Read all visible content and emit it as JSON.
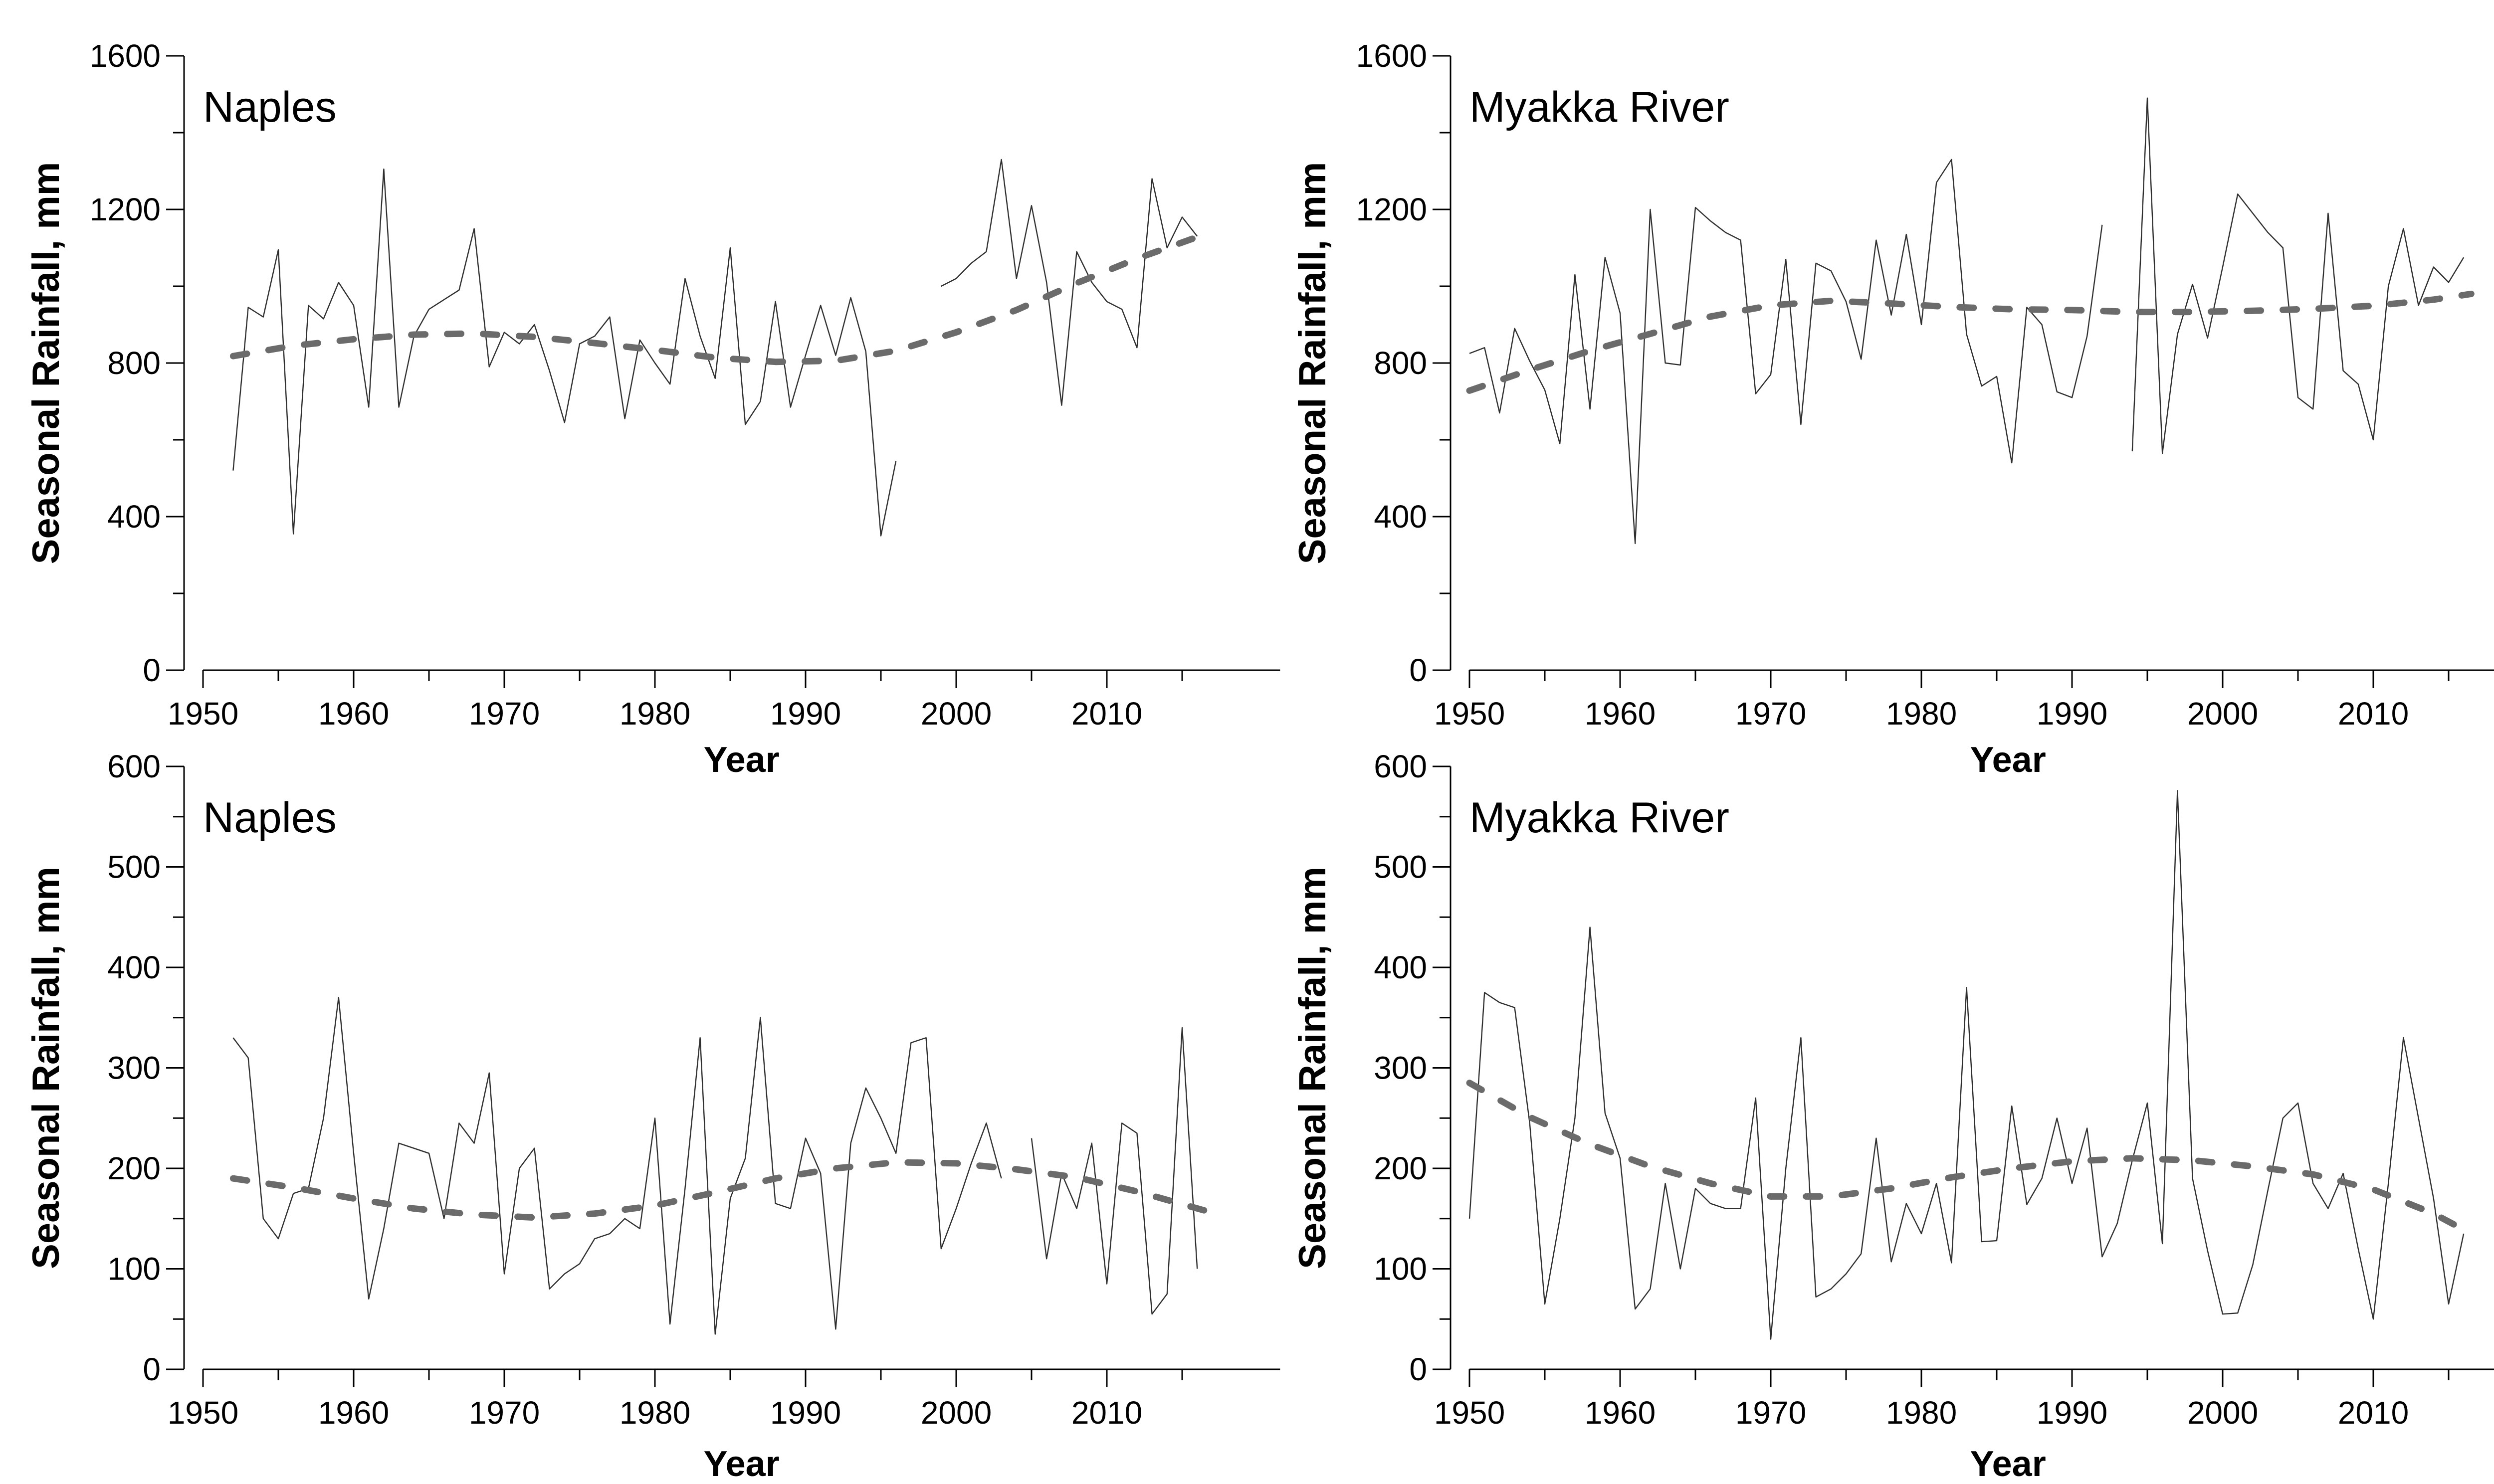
{
  "page": {
    "background": "#ffffff",
    "description": "Four-panel line chart figure of seasonal rainfall for two stations, wet season (top, 0-1600 mm) and dry season (bottom, 0-600 mm)"
  },
  "colors": {
    "axis": "#000000",
    "annual_line": "#2f2f2f",
    "trend_line": "#6b6b6b",
    "text": "#000000"
  },
  "chart_data": [
    {
      "id": "naples-upper",
      "position": "top-left",
      "type": "line",
      "title": "Naples",
      "xlabel": "Year",
      "ylabel": "Seasonal Rainfall, mm",
      "xlim": [
        1950,
        2021.5
      ],
      "ylim": [
        0,
        1600
      ],
      "xticks_major": [
        1950,
        1960,
        1970,
        1980,
        1990,
        2000,
        2010
      ],
      "xticks_minor": [
        1955,
        1965,
        1975,
        1985,
        1995,
        2005,
        2015
      ],
      "yticks_major": [
        0,
        400,
        800,
        1200,
        1600
      ],
      "yticks_minor": [
        200,
        600,
        1000,
        1400
      ],
      "grid": false,
      "legend": null,
      "series": [
        {
          "name": "annual rainfall",
          "style": "thin-solid",
          "start_year": 1952,
          "values": [
            520,
            945,
            920,
            1095,
            355,
            950,
            915,
            1010,
            950,
            685,
            1305,
            685,
            870,
            940,
            965,
            990,
            1150,
            790,
            880,
            850,
            900,
            780,
            645,
            850,
            870,
            920,
            655,
            860,
            800,
            745,
            1020,
            870,
            760,
            1100,
            640,
            700,
            960,
            685,
            820,
            950,
            820,
            970,
            830,
            350,
            545,
            null,
            null,
            1000,
            1020,
            1060,
            1090,
            1330,
            1020,
            1210,
            1010,
            690,
            1090,
            1010,
            960,
            940,
            840,
            1280,
            1100,
            1180,
            1130
          ]
        },
        {
          "name": "smoothed trend",
          "style": "thick-dashed",
          "x": [
            1952,
            1956,
            1960,
            1964,
            1968,
            1972,
            1976,
            1980,
            1984,
            1988,
            1992,
            1996,
            2000,
            2004,
            2008,
            2012,
            2016.5
          ],
          "values": [
            818,
            845,
            862,
            874,
            877,
            868,
            852,
            834,
            814,
            803,
            806,
            832,
            880,
            938,
            1008,
            1072,
            1135
          ]
        }
      ]
    },
    {
      "id": "myakka-upper",
      "position": "top-right",
      "type": "line",
      "title": "Myakka River",
      "xlabel": "Year",
      "ylabel": "Seasonal Rainfall, mm",
      "xlim": [
        1950,
        2021.5
      ],
      "ylim": [
        0,
        1600
      ],
      "xticks_major": [
        1950,
        1960,
        1970,
        1980,
        1990,
        2000,
        2010
      ],
      "xticks_minor": [
        1955,
        1965,
        1975,
        1985,
        1995,
        2005,
        2015
      ],
      "yticks_major": [
        0,
        400,
        800,
        1200,
        1600
      ],
      "yticks_minor": [
        200,
        600,
        1000,
        1400
      ],
      "grid": false,
      "legend": null,
      "series": [
        {
          "name": "annual rainfall",
          "style": "thin-solid",
          "start_year": 1950,
          "values": [
            825,
            840,
            670,
            890,
            805,
            730,
            590,
            1030,
            680,
            1075,
            930,
            330,
            1200,
            800,
            795,
            1205,
            1170,
            1140,
            1120,
            720,
            770,
            1070,
            640,
            1060,
            1040,
            960,
            810,
            1120,
            925,
            1135,
            900,
            1270,
            1330,
            875,
            740,
            765,
            540,
            945,
            900,
            725,
            710,
            870,
            1160,
            null,
            570,
            1490,
            565,
            875,
            1005,
            865,
            1050,
            1240,
            1190,
            1140,
            1100,
            710,
            680,
            1190,
            780,
            745,
            600,
            1000,
            1150,
            950,
            1050,
            1010,
            1075
          ]
        },
        {
          "name": "smoothed trend",
          "style": "thick-dashed",
          "x": [
            1950,
            1954,
            1958,
            1962,
            1966,
            1970,
            1974,
            1978,
            1982,
            1986,
            1990,
            1994,
            1998,
            2002,
            2006,
            2010,
            2014,
            2016.5
          ],
          "values": [
            728,
            782,
            832,
            876,
            921,
            950,
            962,
            955,
            946,
            940,
            938,
            933,
            933,
            936,
            941,
            949,
            965,
            980
          ]
        }
      ]
    },
    {
      "id": "naples-lower",
      "position": "bottom-left",
      "type": "line",
      "title": "Naples",
      "xlabel": "Year",
      "ylabel": "Seasonal Rainfall, mm",
      "xlim": [
        1950,
        2021.5
      ],
      "ylim": [
        0,
        600
      ],
      "xticks_major": [
        1950,
        1960,
        1970,
        1980,
        1990,
        2000,
        2010
      ],
      "xticks_minor": [
        1955,
        1965,
        1975,
        1985,
        1995,
        2005,
        2015
      ],
      "yticks_major": [
        0,
        100,
        200,
        300,
        400,
        500,
        600
      ],
      "yticks_minor": [
        50,
        150,
        250,
        350,
        450,
        550
      ],
      "grid": false,
      "legend": null,
      "series": [
        {
          "name": "annual rainfall",
          "style": "thin-solid",
          "start_year": 1952,
          "values": [
            330,
            310,
            150,
            130,
            175,
            180,
            250,
            370,
            215,
            70,
            140,
            225,
            220,
            215,
            150,
            245,
            225,
            295,
            95,
            200,
            220,
            80,
            95,
            105,
            130,
            135,
            150,
            140,
            250,
            45,
            180,
            330,
            35,
            170,
            210,
            350,
            165,
            160,
            230,
            195,
            40,
            225,
            280,
            250,
            215,
            325,
            330,
            120,
            160,
            205,
            245,
            190,
            null,
            230,
            110,
            195,
            160,
            225,
            85,
            245,
            235,
            55,
            75,
            340,
            100
          ]
        },
        {
          "name": "smoothed trend",
          "style": "thick-dashed",
          "x": [
            1952,
            1956,
            1960,
            1964,
            1968,
            1972,
            1976,
            1980,
            1984,
            1988,
            1992,
            1996,
            2000,
            2004,
            2008,
            2012,
            2016.5
          ],
          "values": [
            190,
            181,
            170,
            160,
            154,
            151,
            155,
            163,
            176,
            190,
            200,
            206,
            205,
            199,
            191,
            177,
            158
          ]
        }
      ]
    },
    {
      "id": "myakka-lower",
      "position": "bottom-right",
      "type": "line",
      "title": "Myakka River",
      "xlabel": "Year",
      "ylabel": "Seasonal Rainfall, mm",
      "xlim": [
        1950,
        2021.5
      ],
      "ylim": [
        0,
        600
      ],
      "xticks_major": [
        1950,
        1960,
        1970,
        1980,
        1990,
        2000,
        2010
      ],
      "xticks_minor": [
        1955,
        1965,
        1975,
        1985,
        1995,
        2005,
        2015
      ],
      "yticks_major": [
        0,
        100,
        200,
        300,
        400,
        500,
        600
      ],
      "yticks_minor": [
        50,
        150,
        250,
        350,
        450,
        550
      ],
      "grid": false,
      "legend": null,
      "series": [
        {
          "name": "annual rainfall",
          "style": "thin-solid",
          "start_year": 1950,
          "values": [
            150,
            375,
            365,
            360,
            245,
            65,
            150,
            250,
            440,
            255,
            210,
            60,
            80,
            185,
            100,
            180,
            165,
            160,
            160,
            270,
            30,
            200,
            330,
            72,
            80,
            95,
            115,
            230,
            107,
            165,
            135,
            185,
            106,
            380,
            127,
            128,
            262,
            164,
            190,
            250,
            185,
            240,
            112,
            145,
            208,
            265,
            125,
            576,
            190,
            118,
            55,
            56,
            104,
            178,
            250,
            265,
            185,
            160,
            195,
            120,
            50,
            185,
            330,
            250,
            170,
            65,
            135
          ]
        },
        {
          "name": "smoothed trend",
          "style": "thick-dashed",
          "x": [
            1950,
            1954,
            1958,
            1962,
            1966,
            1970,
            1974,
            1978,
            1982,
            1986,
            1990,
            1994,
            1998,
            2002,
            2006,
            2010,
            2014,
            2016.5
          ],
          "values": [
            285,
            251,
            224,
            202,
            185,
            172,
            172,
            180,
            191,
            200,
            207,
            210,
            208,
            202,
            194,
            179,
            155,
            135
          ]
        }
      ]
    }
  ]
}
